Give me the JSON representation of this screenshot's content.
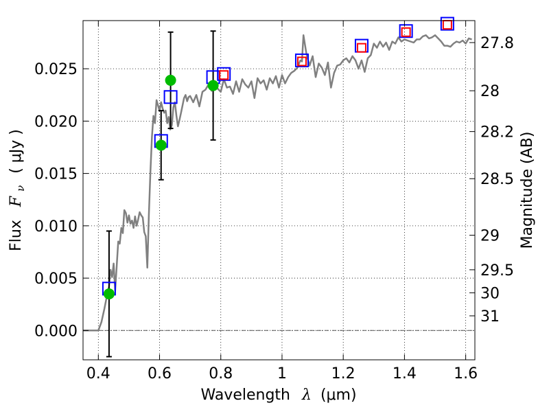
{
  "chart_data": {
    "type": "line",
    "title": "",
    "xlabel": "Wavelength",
    "xlabel_symbol": "λ",
    "xlabel_unit": "(μm)",
    "ylabel": "Flux",
    "ylabel_symbol": "F",
    "ylabel_sub": "ν",
    "ylabel_unit": "( μJy )",
    "y2label": "Magnitude (AB)",
    "xlim": [
      0.35,
      1.63
    ],
    "ylim": [
      -0.0028,
      0.0296
    ],
    "xticks": [
      0.4,
      0.6,
      0.8,
      1.0,
      1.2,
      1.4,
      1.6
    ],
    "xtick_labels": [
      "0.4",
      "0.6",
      "0.8",
      "1",
      "1.2",
      "1.4",
      "1.6"
    ],
    "yticks": [
      0.0,
      0.005,
      0.01,
      0.015,
      0.02,
      0.025
    ],
    "ytick_labels": [
      "0.000",
      "0.005",
      "0.010",
      "0.015",
      "0.020",
      "0.025"
    ],
    "y2ticks": [
      {
        "label": "27.8",
        "flux": 0.0275
      },
      {
        "label": "28",
        "flux": 0.0229
      },
      {
        "label": "28.2",
        "flux": 0.019
      },
      {
        "label": "28.5",
        "flux": 0.0145
      },
      {
        "label": "29",
        "flux": 0.0091
      },
      {
        "label": "29.5",
        "flux": 0.0058
      },
      {
        "label": "30",
        "flux": 0.0036
      },
      {
        "label": "31",
        "flux": 0.0014
      }
    ],
    "grid": true,
    "zero_line": true,
    "series": [
      {
        "style": "line",
        "color": "#808080",
        "x": [
          0.35,
          0.4,
          0.41,
          0.42,
          0.43,
          0.435,
          0.44,
          0.445,
          0.45,
          0.455,
          0.46,
          0.465,
          0.47,
          0.475,
          0.48,
          0.485,
          0.49,
          0.495,
          0.5,
          0.505,
          0.51,
          0.515,
          0.52,
          0.525,
          0.53,
          0.535,
          0.54,
          0.545,
          0.55,
          0.555,
          0.56,
          0.565,
          0.57,
          0.575,
          0.58,
          0.585,
          0.59,
          0.595,
          0.6,
          0.605,
          0.61,
          0.615,
          0.62,
          0.625,
          0.63,
          0.635,
          0.64,
          0.645,
          0.65,
          0.655,
          0.66,
          0.665,
          0.67,
          0.675,
          0.68,
          0.685,
          0.69,
          0.695,
          0.7,
          0.71,
          0.72,
          0.73,
          0.74,
          0.75,
          0.76,
          0.77,
          0.78,
          0.79,
          0.8,
          0.81,
          0.82,
          0.83,
          0.84,
          0.85,
          0.86,
          0.87,
          0.88,
          0.89,
          0.9,
          0.91,
          0.92,
          0.93,
          0.94,
          0.95,
          0.96,
          0.97,
          0.98,
          0.99,
          1.0,
          1.01,
          1.02,
          1.03,
          1.04,
          1.05,
          1.06,
          1.065,
          1.07,
          1.08,
          1.09,
          1.1,
          1.11,
          1.12,
          1.13,
          1.14,
          1.15,
          1.16,
          1.17,
          1.18,
          1.19,
          1.2,
          1.21,
          1.22,
          1.23,
          1.24,
          1.25,
          1.26,
          1.27,
          1.28,
          1.29,
          1.3,
          1.31,
          1.32,
          1.33,
          1.34,
          1.35,
          1.36,
          1.37,
          1.38,
          1.39,
          1.4,
          1.41,
          1.42,
          1.43,
          1.44,
          1.45,
          1.46,
          1.47,
          1.48,
          1.49,
          1.5,
          1.51,
          1.52,
          1.53,
          1.54,
          1.55,
          1.56,
          1.57,
          1.58,
          1.59,
          1.6,
          1.61,
          1.62
        ],
        "y": [
          0.0,
          0.0,
          0.0008,
          0.0021,
          0.0036,
          0.0042,
          0.0058,
          0.0051,
          0.0064,
          0.0038,
          0.0062,
          0.0085,
          0.0083,
          0.0098,
          0.0093,
          0.0115,
          0.0112,
          0.0103,
          0.011,
          0.0102,
          0.0105,
          0.0098,
          0.0109,
          0.01,
          0.0106,
          0.0113,
          0.011,
          0.0108,
          0.0094,
          0.009,
          0.006,
          0.011,
          0.015,
          0.0185,
          0.0205,
          0.0198,
          0.022,
          0.0215,
          0.021,
          0.0218,
          0.0212,
          0.0208,
          0.021,
          0.0198,
          0.0204,
          0.0192,
          0.0196,
          0.0213,
          0.0218,
          0.0205,
          0.0195,
          0.0201,
          0.0208,
          0.0215,
          0.0222,
          0.0225,
          0.0219,
          0.0223,
          0.0224,
          0.0218,
          0.0225,
          0.0214,
          0.0228,
          0.023,
          0.0235,
          0.0229,
          0.0236,
          0.0231,
          0.0228,
          0.024,
          0.0232,
          0.0233,
          0.0226,
          0.0238,
          0.0228,
          0.024,
          0.0235,
          0.0232,
          0.0238,
          0.0222,
          0.0241,
          0.0236,
          0.0239,
          0.023,
          0.0241,
          0.0236,
          0.0243,
          0.0232,
          0.0244,
          0.0236,
          0.0242,
          0.0246,
          0.0248,
          0.0251,
          0.0258,
          0.0257,
          0.0282,
          0.0264,
          0.0253,
          0.0262,
          0.0242,
          0.0255,
          0.0251,
          0.0244,
          0.0256,
          0.0232,
          0.0246,
          0.0253,
          0.0254,
          0.0258,
          0.026,
          0.0256,
          0.0262,
          0.0258,
          0.025,
          0.0258,
          0.0247,
          0.026,
          0.0263,
          0.0274,
          0.027,
          0.0276,
          0.0271,
          0.0275,
          0.0268,
          0.0276,
          0.0274,
          0.028,
          0.0276,
          0.0278,
          0.0277,
          0.0276,
          0.0275,
          0.0278,
          0.0278,
          0.0281,
          0.0282,
          0.0279,
          0.028,
          0.0282,
          0.0279,
          0.0276,
          0.0272,
          0.0272,
          0.0271,
          0.0274,
          0.0276,
          0.0275,
          0.0277,
          0.0274,
          0.0279,
          0.0278
        ]
      },
      {
        "style": "scatter",
        "marker": "circle",
        "color": "#00bb00",
        "x": [
          0.435,
          0.605,
          0.636,
          0.775
        ],
        "y": [
          0.0035,
          0.0177,
          0.0239,
          0.0234
        ],
        "yerr": [
          0.006,
          0.0033,
          0.0046,
          0.0052
        ]
      },
      {
        "style": "scatter",
        "marker": "open-square",
        "color": "#0000ff",
        "x": [
          0.435,
          0.605,
          0.636,
          0.775,
          0.81,
          1.065,
          1.26,
          1.405,
          1.54
        ],
        "y": [
          0.004,
          0.0181,
          0.0223,
          0.0242,
          0.0245,
          0.0258,
          0.0272,
          0.0286,
          0.0293
        ]
      },
      {
        "style": "scatter",
        "marker": "open-square",
        "color": "#ff0000",
        "x": [
          0.81,
          1.065,
          1.26,
          1.405,
          1.54
        ],
        "y": [
          0.0244,
          0.0257,
          0.027,
          0.0285,
          0.0292
        ]
      }
    ]
  }
}
